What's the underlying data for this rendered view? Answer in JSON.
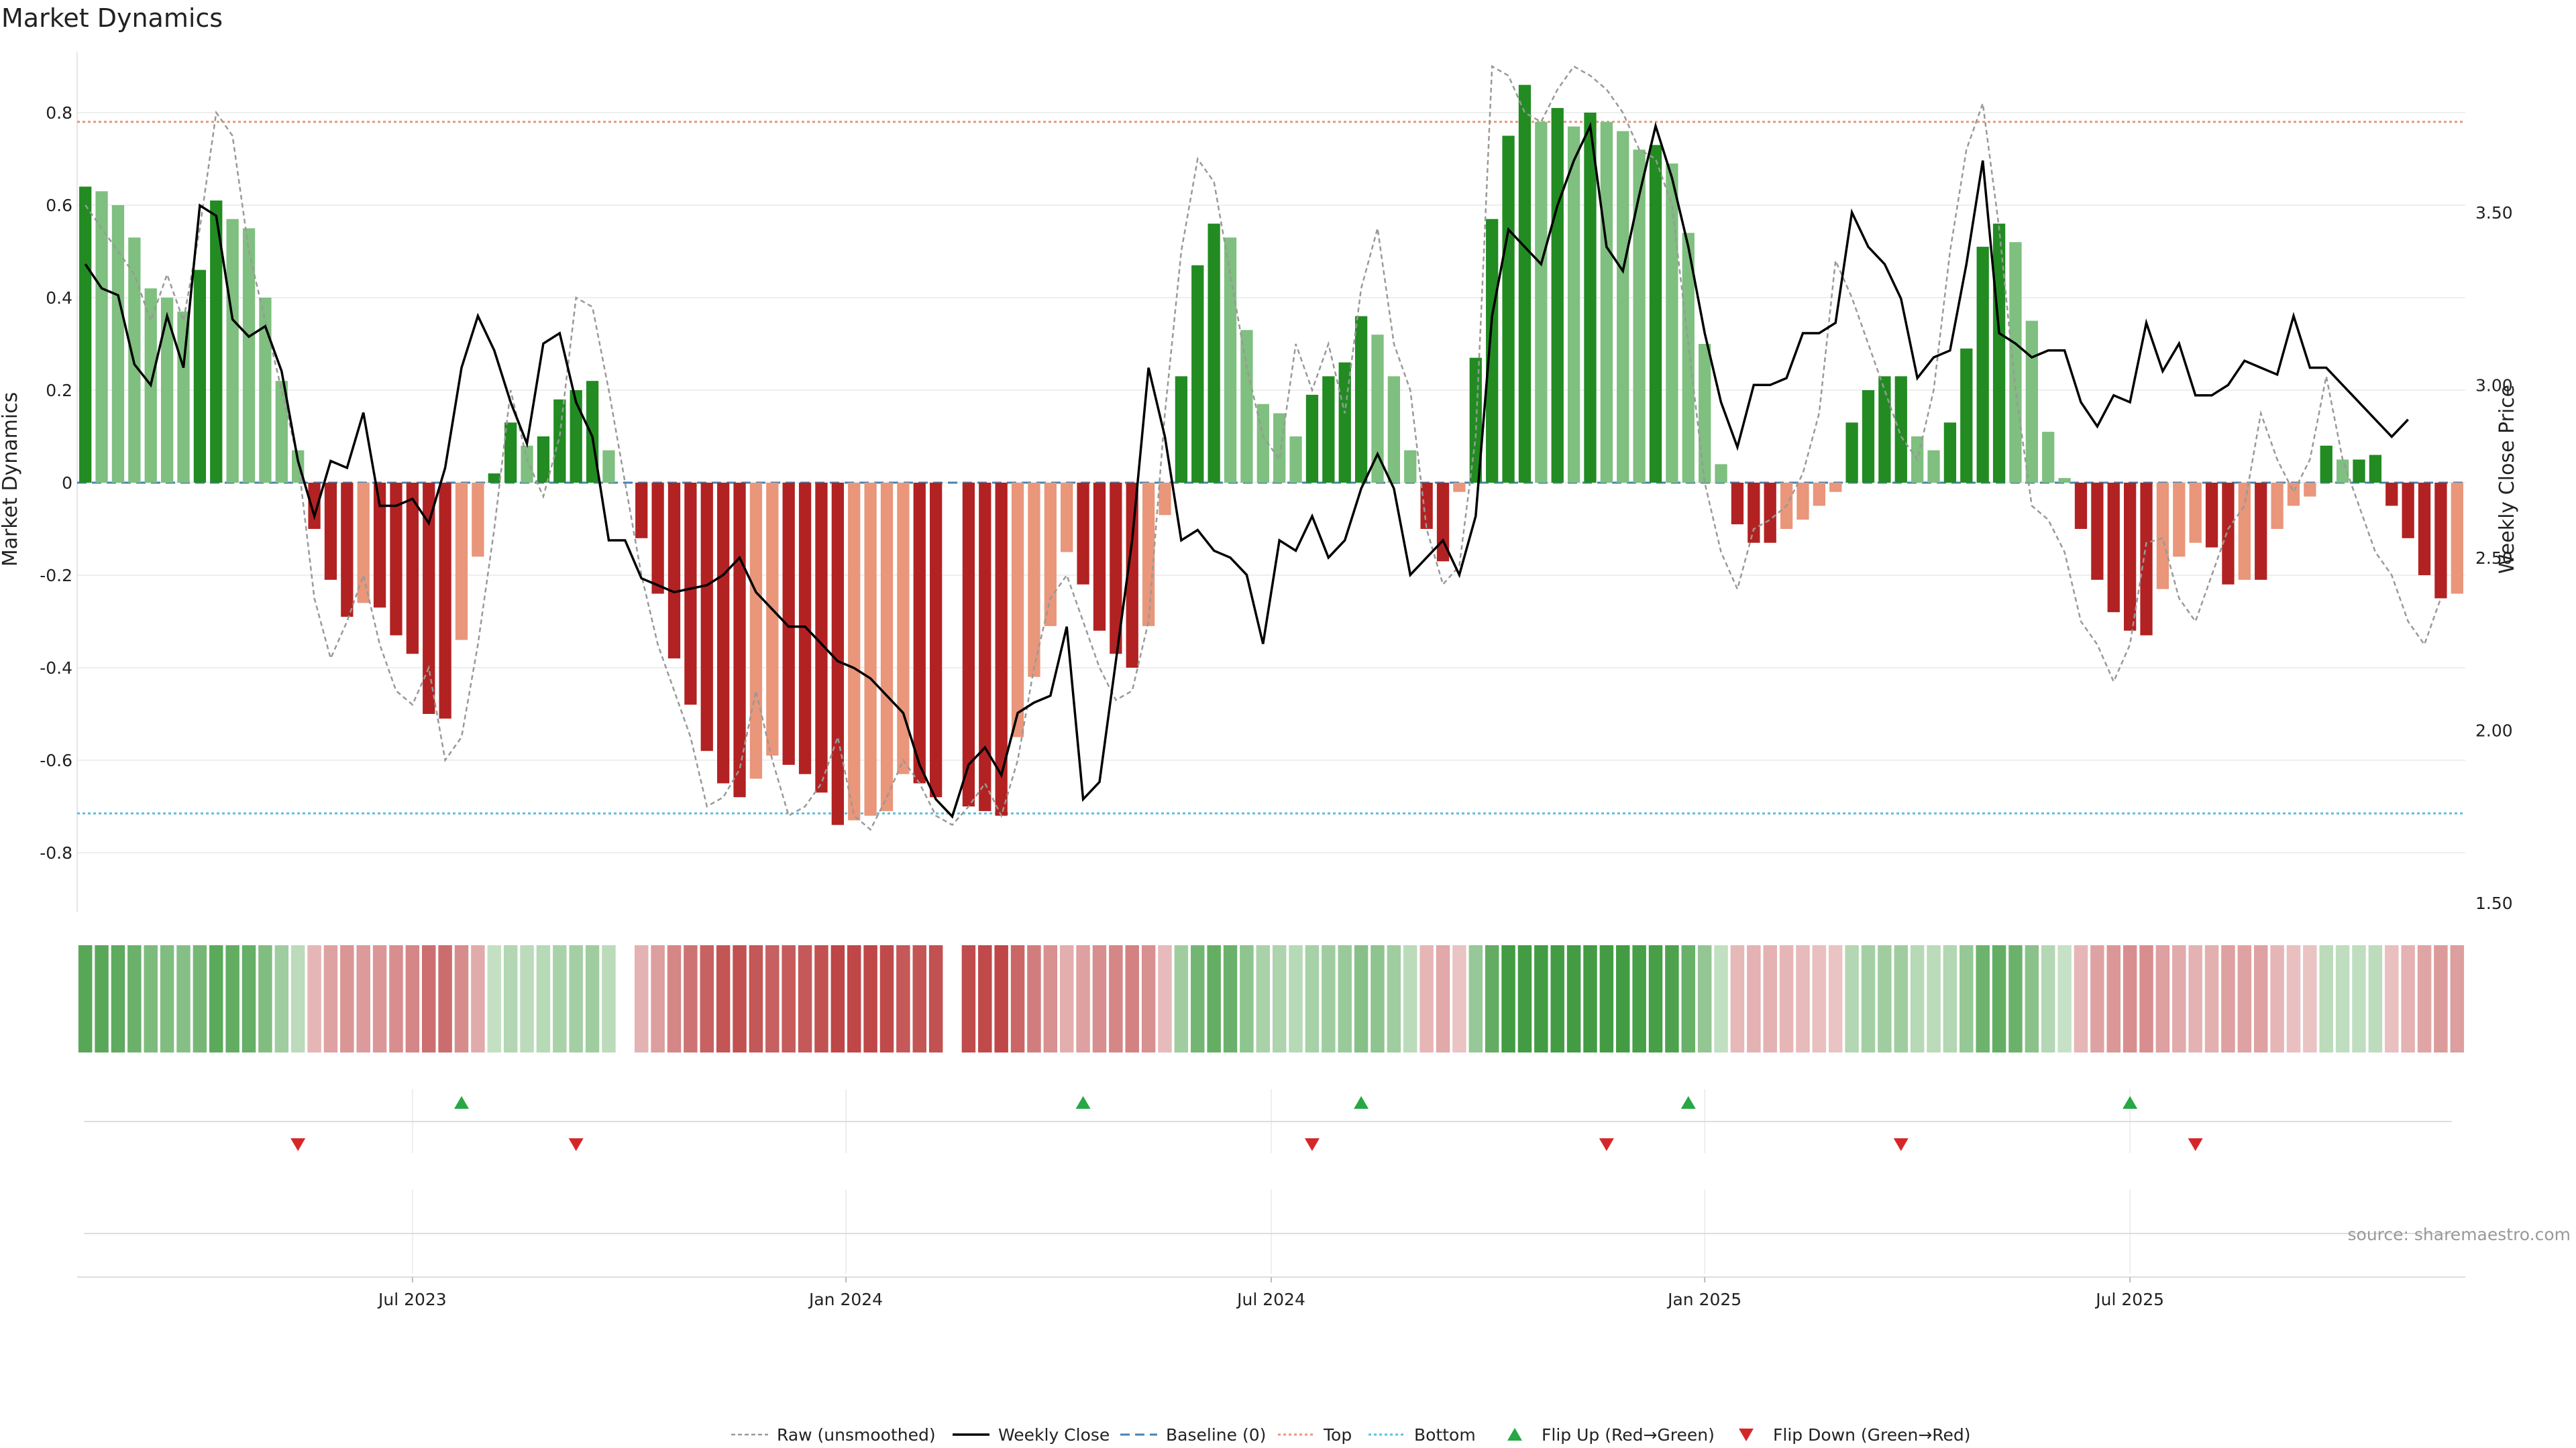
{
  "chart_data": {
    "type": "bar",
    "title": "Market Dynamics",
    "ylabel_left": "Market Dynamics",
    "ylabel_right": "Weekly Close Price",
    "left_ylim": [
      -0.93,
      0.93
    ],
    "right_ylim": [
      1.45,
      3.95
    ],
    "left_ticks": [
      "0.8",
      "0.6",
      "0.4",
      "0.2",
      "0",
      "-0.2",
      "-0.4",
      "-0.6",
      "-0.8"
    ],
    "right_ticks": [
      "3.50",
      "3.00",
      "2.50",
      "2.00",
      "1.50"
    ],
    "x_ticks": [
      "Jul 2023",
      "Jan 2024",
      "Jul 2024",
      "Jan 2025",
      "Jul 2025"
    ],
    "x_tick_weeks": [
      20,
      46.5,
      72.5,
      99,
      125
    ],
    "top_level": 0.78,
    "bottom_level": -0.715,
    "baseline": 0,
    "bar_values": [
      0.64,
      0.63,
      0.6,
      0.53,
      0.42,
      0.4,
      0.37,
      0.46,
      0.61,
      0.57,
      0.55,
      0.4,
      0.22,
      0.07,
      -0.1,
      -0.21,
      -0.29,
      -0.26,
      -0.27,
      -0.33,
      -0.37,
      -0.5,
      -0.51,
      -0.34,
      -0.16,
      0.02,
      0.13,
      0.08,
      0.1,
      0.18,
      0.2,
      0.22,
      0.07,
      0,
      -0.12,
      -0.24,
      -0.38,
      -0.48,
      -0.58,
      -0.65,
      -0.68,
      -0.64,
      -0.59,
      -0.61,
      -0.63,
      -0.67,
      -0.74,
      -0.73,
      -0.72,
      -0.71,
      -0.63,
      -0.65,
      -0.68,
      0,
      -0.7,
      -0.71,
      -0.72,
      -0.55,
      -0.42,
      -0.31,
      -0.15,
      -0.22,
      -0.32,
      -0.37,
      -0.4,
      -0.31,
      -0.07,
      0.23,
      0.47,
      0.56,
      0.53,
      0.33,
      0.17,
      0.15,
      0.1,
      0.19,
      0.23,
      0.26,
      0.36,
      0.32,
      0.23,
      0.07,
      -0.1,
      -0.17,
      -0.02,
      0.27,
      0.57,
      0.75,
      0.86,
      0.78,
      0.81,
      0.77,
      0.8,
      0.78,
      0.76,
      0.72,
      0.73,
      0.69,
      0.54,
      0.3,
      0.04,
      -0.09,
      -0.13,
      -0.13,
      -0.1,
      -0.08,
      -0.05,
      -0.02,
      0.13,
      0.2,
      0.23,
      0.23,
      0.1,
      0.07,
      0.13,
      0.29,
      0.51,
      0.56,
      0.52,
      0.35,
      0.11,
      0.01,
      -0.1,
      -0.21,
      -0.28,
      -0.32,
      -0.33,
      -0.23,
      -0.16,
      -0.13,
      -0.14,
      -0.22,
      -0.21,
      -0.21,
      -0.1,
      -0.05,
      -0.03,
      0.08,
      0.05,
      0.05,
      0.06,
      -0.05,
      -0.12,
      -0.2,
      -0.25,
      -0.24
    ],
    "raw_values": [
      0.6,
      0.55,
      0.5,
      0.45,
      0.35,
      0.45,
      0.35,
      0.55,
      0.8,
      0.75,
      0.5,
      0.35,
      0.2,
      0.05,
      -0.25,
      -0.38,
      -0.3,
      -0.2,
      -0.35,
      -0.45,
      -0.48,
      -0.4,
      -0.6,
      -0.55,
      -0.35,
      -0.1,
      0.2,
      0.05,
      -0.03,
      0.1,
      0.4,
      0.38,
      0.2,
      0.0,
      -0.2,
      -0.35,
      -0.45,
      -0.55,
      -0.7,
      -0.68,
      -0.62,
      -0.45,
      -0.6,
      -0.72,
      -0.7,
      -0.65,
      -0.55,
      -0.72,
      -0.75,
      -0.68,
      -0.6,
      -0.65,
      -0.72,
      -0.74,
      -0.7,
      -0.65,
      -0.72,
      -0.6,
      -0.4,
      -0.25,
      -0.2,
      -0.3,
      -0.4,
      -0.47,
      -0.45,
      -0.3,
      0.15,
      0.5,
      0.7,
      0.65,
      0.45,
      0.25,
      0.1,
      0.05,
      0.3,
      0.2,
      0.3,
      0.15,
      0.42,
      0.55,
      0.3,
      0.2,
      -0.1,
      -0.22,
      -0.18,
      0.1,
      0.9,
      0.88,
      0.8,
      0.78,
      0.85,
      0.9,
      0.88,
      0.85,
      0.8,
      0.72,
      0.7,
      0.6,
      0.3,
      0.0,
      -0.15,
      -0.23,
      -0.1,
      -0.08,
      -0.05,
      0.02,
      0.15,
      0.48,
      0.4,
      0.3,
      0.2,
      0.1,
      0.05,
      0.2,
      0.5,
      0.72,
      0.82,
      0.55,
      0.2,
      -0.05,
      -0.08,
      -0.15,
      -0.3,
      -0.35,
      -0.43,
      -0.35,
      -0.13,
      -0.12,
      -0.25,
      -0.3,
      -0.2,
      -0.1,
      -0.05,
      0.15,
      0.05,
      -0.02,
      0.05,
      0.23,
      0.05,
      -0.05,
      -0.15,
      -0.2,
      -0.3,
      -0.35,
      -0.25
    ],
    "close_values": [
      3.35,
      3.28,
      3.26,
      3.06,
      3.0,
      3.2,
      3.05,
      3.52,
      3.49,
      3.19,
      3.14,
      3.17,
      3.04,
      2.78,
      2.62,
      2.78,
      2.76,
      2.92,
      2.65,
      2.65,
      2.67,
      2.6,
      2.76,
      3.05,
      3.2,
      3.1,
      2.95,
      2.83,
      3.12,
      3.15,
      2.95,
      2.85,
      2.55,
      2.55,
      2.44,
      2.42,
      2.4,
      2.41,
      2.42,
      2.45,
      2.5,
      2.4,
      2.35,
      2.3,
      2.3,
      2.25,
      2.2,
      2.18,
      2.15,
      2.1,
      2.05,
      1.9,
      1.8,
      1.75,
      1.9,
      1.95,
      1.87,
      2.05,
      2.08,
      2.1,
      2.3,
      1.8,
      1.85,
      2.2,
      2.55,
      3.05,
      2.85,
      2.55,
      2.58,
      2.52,
      2.5,
      2.45,
      2.25,
      2.55,
      2.52,
      2.62,
      2.5,
      2.55,
      2.7,
      2.8,
      2.7,
      2.45,
      2.5,
      2.55,
      2.45,
      2.62,
      3.2,
      3.45,
      3.4,
      3.35,
      3.52,
      3.65,
      3.75,
      3.4,
      3.33,
      3.55,
      3.75,
      3.6,
      3.4,
      3.15,
      2.95,
      2.82,
      3.0,
      3.0,
      3.02,
      3.15,
      3.15,
      3.18,
      3.5,
      3.4,
      3.35,
      3.25,
      3.02,
      3.08,
      3.1,
      3.35,
      3.65,
      3.15,
      3.12,
      3.08,
      3.1,
      3.1,
      2.95,
      2.88,
      2.97,
      2.95,
      3.18,
      3.04,
      3.12,
      2.97,
      2.97,
      3.0,
      3.07,
      3.05,
      3.03,
      3.2,
      3.05,
      3.05,
      3.0,
      2.95,
      2.9,
      2.85,
      2.9
    ],
    "flip_up_weeks": [
      23,
      61,
      78,
      98,
      125
    ],
    "flip_down_weeks": [
      13,
      30,
      75,
      93,
      111,
      129
    ],
    "legend": [
      "Raw (unsmoothed)",
      "Weekly Close",
      "Baseline (0)",
      "Top",
      "Bottom",
      "Flip Up (Red→Green)",
      "Flip Down (Green→Red)"
    ],
    "source": "source: sharemaestro.com"
  },
  "colors": {
    "green_dark": "#228b22",
    "green_light": "#7fbf7f",
    "red_dark": "#b22222",
    "red_light": "#e9967a",
    "raw_line": "#999999",
    "close_line": "#000000",
    "baseline": "#4682b4",
    "top": "#e9967a",
    "bottom": "#5bc0de",
    "flip_up": "#28a745",
    "flip_down": "#d62728"
  }
}
